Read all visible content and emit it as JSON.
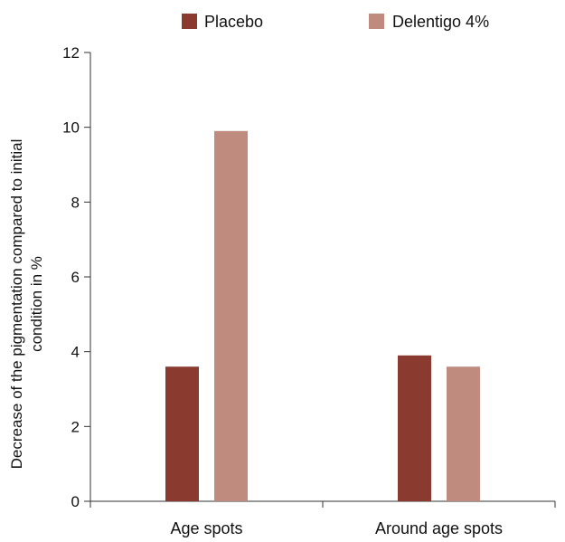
{
  "chart_data": {
    "type": "bar",
    "categories": [
      "Age spots",
      "Around age spots"
    ],
    "series": [
      {
        "name": "Placebo",
        "values": [
          3.6,
          3.9
        ],
        "color": "#8b3a2f"
      },
      {
        "name": "Delentigo 4%",
        "values": [
          9.9,
          3.6
        ],
        "color": "#bf8b7e"
      }
    ],
    "ylabel_lines": [
      "Decrease of the pigmentation compared to initial",
      "condition in %"
    ],
    "ylim": [
      0,
      12
    ],
    "yticks": [
      0,
      2,
      4,
      6,
      8,
      10,
      12
    ],
    "legend_placement": "top-center",
    "grid": false
  }
}
